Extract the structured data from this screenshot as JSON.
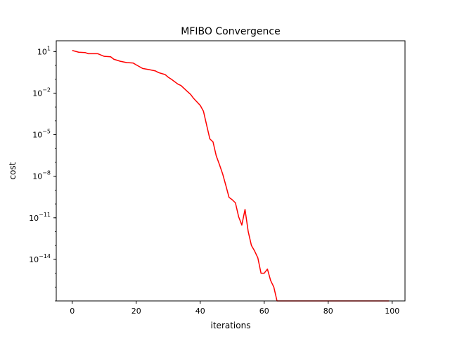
{
  "chart_data": {
    "type": "line",
    "title": "MFIBO Convergence",
    "xlabel": "iterations",
    "ylabel": "cost",
    "yscale": "log",
    "xlim": [
      -5,
      104
    ],
    "ylim": [
      1e-17,
      60
    ],
    "grid": false,
    "legend": "none",
    "x_ticks": [
      0,
      20,
      40,
      60,
      80,
      100
    ],
    "x_tick_labels": [
      "0",
      "20",
      "40",
      "60",
      "80",
      "100"
    ],
    "y_ticks": [
      10,
      0.01,
      1e-05,
      1e-08,
      1e-11,
      1e-14
    ],
    "y_tick_labels": [
      {
        "base": "10",
        "exp": "1"
      },
      {
        "base": "10",
        "exp": "−2"
      },
      {
        "base": "10",
        "exp": "−5"
      },
      {
        "base": "10",
        "exp": "−8"
      },
      {
        "base": "10",
        "exp": "−11"
      },
      {
        "base": "10",
        "exp": "−14"
      }
    ],
    "series": [
      {
        "color": "#ff0000",
        "x": [
          0,
          2,
          4,
          5,
          8,
          10,
          12,
          13,
          15,
          17,
          19,
          20,
          22,
          24,
          26,
          27,
          29,
          30,
          31,
          33,
          34,
          36,
          37,
          38,
          40,
          41,
          42,
          43,
          44,
          45,
          46,
          47,
          48,
          49,
          50,
          51,
          52,
          53,
          54,
          55,
          56,
          57,
          58,
          59,
          60,
          61,
          62,
          63,
          64,
          70,
          80,
          90,
          99
        ],
        "y": [
          12,
          9,
          8.5,
          7,
          7,
          4.5,
          4.2,
          2.8,
          2,
          1.6,
          1.5,
          1.1,
          0.6,
          0.5,
          0.4,
          0.3,
          0.22,
          0.14,
          0.1,
          0.045,
          0.035,
          0.013,
          0.008,
          0.004,
          0.0013,
          0.0005,
          5e-05,
          5e-06,
          3e-06,
          3e-07,
          7e-08,
          1.5e-08,
          2.2e-09,
          3e-10,
          2e-10,
          1.2e-10,
          1.2e-11,
          3e-12,
          4e-11,
          1e-12,
          1e-13,
          4e-14,
          1.3e-14,
          1e-15,
          1e-15,
          2e-15,
          3e-16,
          1e-16,
          1e-17,
          1e-17,
          1e-17,
          1e-17,
          1e-17
        ]
      }
    ]
  }
}
